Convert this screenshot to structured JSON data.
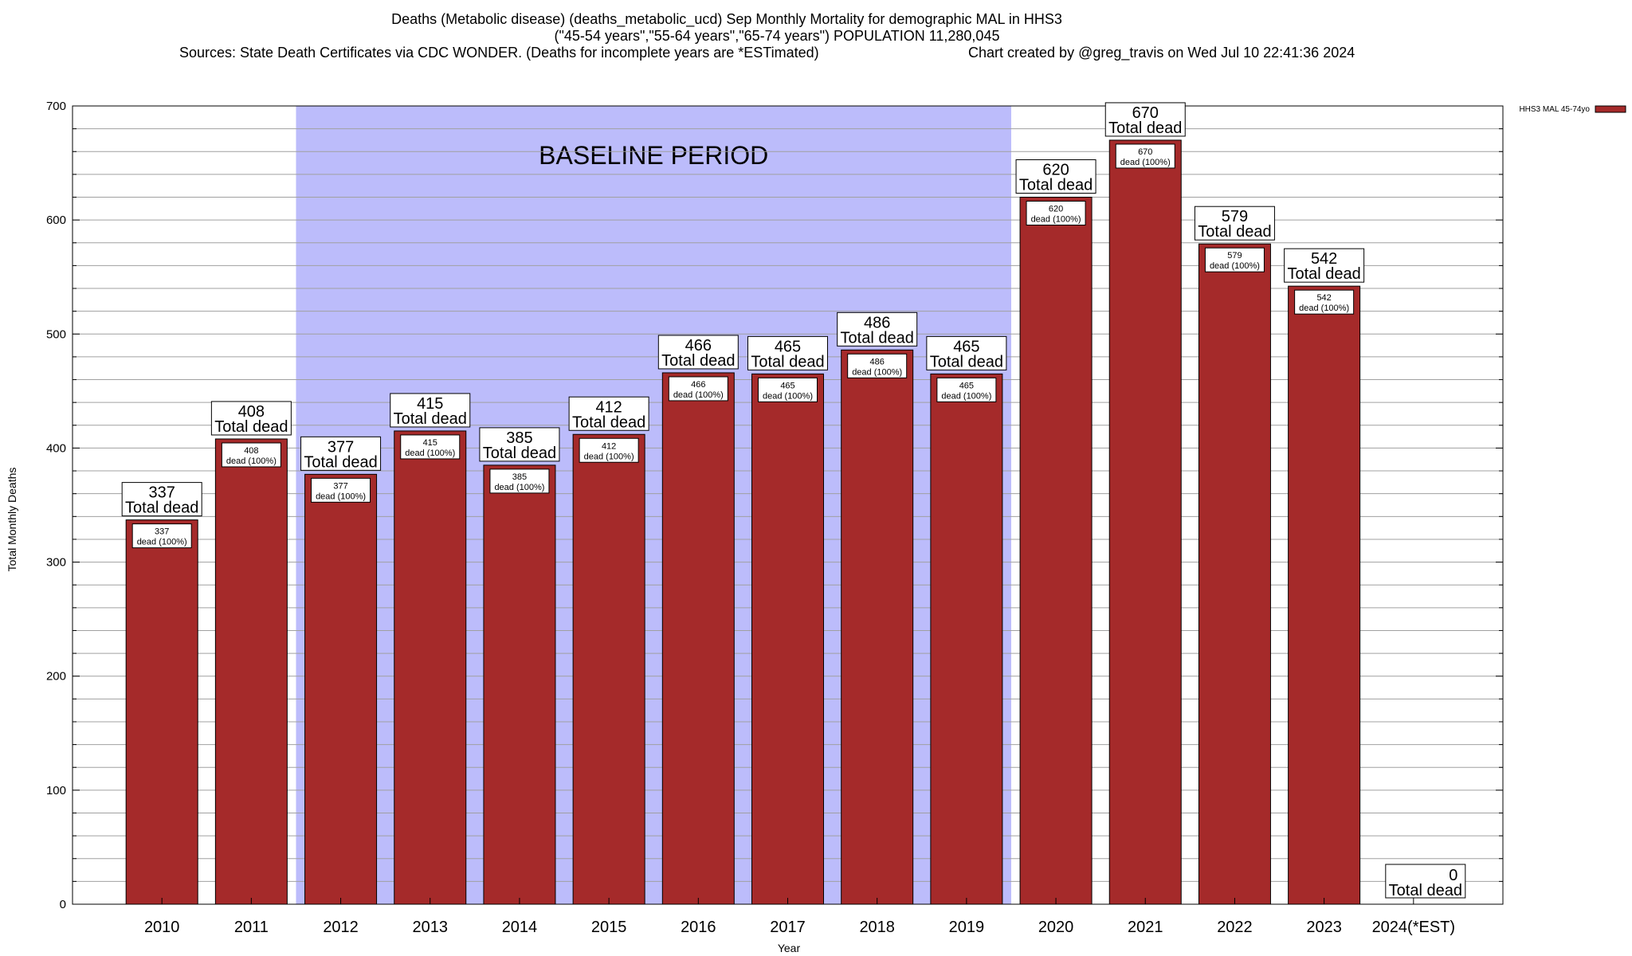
{
  "chart_data": {
    "type": "bar",
    "title_lines": [
      "Deaths (Metabolic disease) (deaths_metabolic_ucd) Sep Monthly Mortality for demographic MAL in HHS3",
      "(\"45-54 years\",\"55-64 years\",\"65-74 years\") POPULATION 11,280,045",
      "Sources: State Death Certificates via CDC WONDER. (Deaths for incomplete years are *ESTimated)",
      "Chart created by @greg_travis on Wed Jul 10 22:41:36 2024"
    ],
    "xlabel": "Year",
    "ylabel": "Total Monthly Deaths",
    "ylim": [
      0,
      700
    ],
    "yticks": [
      0,
      100,
      200,
      300,
      400,
      500,
      600,
      700
    ],
    "grid": true,
    "legend": {
      "placement": "top-right",
      "entries": [
        "HHS3 MAL 45-74yo"
      ]
    },
    "baseline": {
      "label": "BASELINE PERIOD",
      "start": "2012",
      "end": "2019"
    },
    "categories": [
      "2010",
      "2011",
      "2012",
      "2013",
      "2014",
      "2015",
      "2016",
      "2017",
      "2018",
      "2019",
      "2020",
      "2021",
      "2022",
      "2023",
      "2024(*EST)"
    ],
    "series": [
      {
        "name": "HHS3 MAL 45-74yo",
        "color": "#a52a2a",
        "values": [
          337,
          408,
          377,
          415,
          385,
          412,
          466,
          465,
          486,
          465,
          620,
          670,
          579,
          542,
          0
        ]
      }
    ],
    "total_label": "Total dead",
    "inner_label": "dead (100%)",
    "colors": {
      "bar": "#a52a2a",
      "baseline_fill": "#bcbcfb",
      "grid": "#a0a0a0"
    }
  }
}
